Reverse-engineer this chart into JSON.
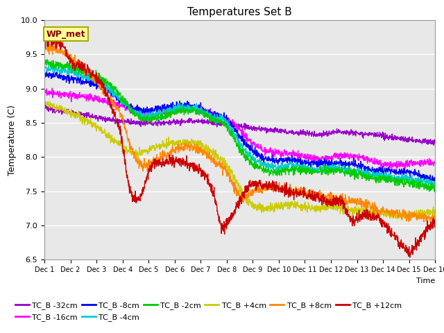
{
  "title": "Temperatures Set B",
  "xlabel": "Time",
  "ylabel": "Temperature (C)",
  "ylim": [
    6.5,
    10.0
  ],
  "xlim": [
    0,
    15
  ],
  "xtick_labels": [
    "Dec 1",
    "Dec 2",
    "Dec 3",
    "Dec 4",
    "Dec 5",
    "Dec 6",
    "Dec 7",
    "Dec 8",
    "Dec 9",
    "Dec 10",
    "Dec 11",
    "Dec 12",
    "Dec 13",
    "Dec 14",
    "Dec 15",
    "Dec 16"
  ],
  "ytick_values": [
    6.5,
    7.0,
    7.5,
    8.0,
    8.5,
    9.0,
    9.5,
    10.0
  ],
  "series_order": [
    "TC_B -32cm",
    "TC_B -16cm",
    "TC_B -8cm",
    "TC_B -4cm",
    "TC_B -2cm",
    "TC_B +4cm",
    "TC_B +8cm",
    "TC_B +12cm"
  ],
  "series": {
    "TC_B -32cm": {
      "color": "#9900cc",
      "lw": 1.0
    },
    "TC_B -16cm": {
      "color": "#ff00ff",
      "lw": 1.0
    },
    "TC_B -8cm": {
      "color": "#0000ff",
      "lw": 1.0
    },
    "TC_B -4cm": {
      "color": "#00cccc",
      "lw": 1.0
    },
    "TC_B -2cm": {
      "color": "#00cc00",
      "lw": 1.0
    },
    "TC_B +4cm": {
      "color": "#cccc00",
      "lw": 1.0
    },
    "TC_B +8cm": {
      "color": "#ff8800",
      "lw": 1.0
    },
    "TC_B +12cm": {
      "color": "#cc0000",
      "lw": 1.0
    }
  },
  "wp_met_box_color": "#ffff99",
  "wp_met_text_color": "#880000",
  "fig_bg_color": "#ffffff",
  "plot_bg_color": "#e8e8e8",
  "grid_color": "#ffffff",
  "legend_ncol_row1": 6,
  "legend_ncol_row2": 2
}
